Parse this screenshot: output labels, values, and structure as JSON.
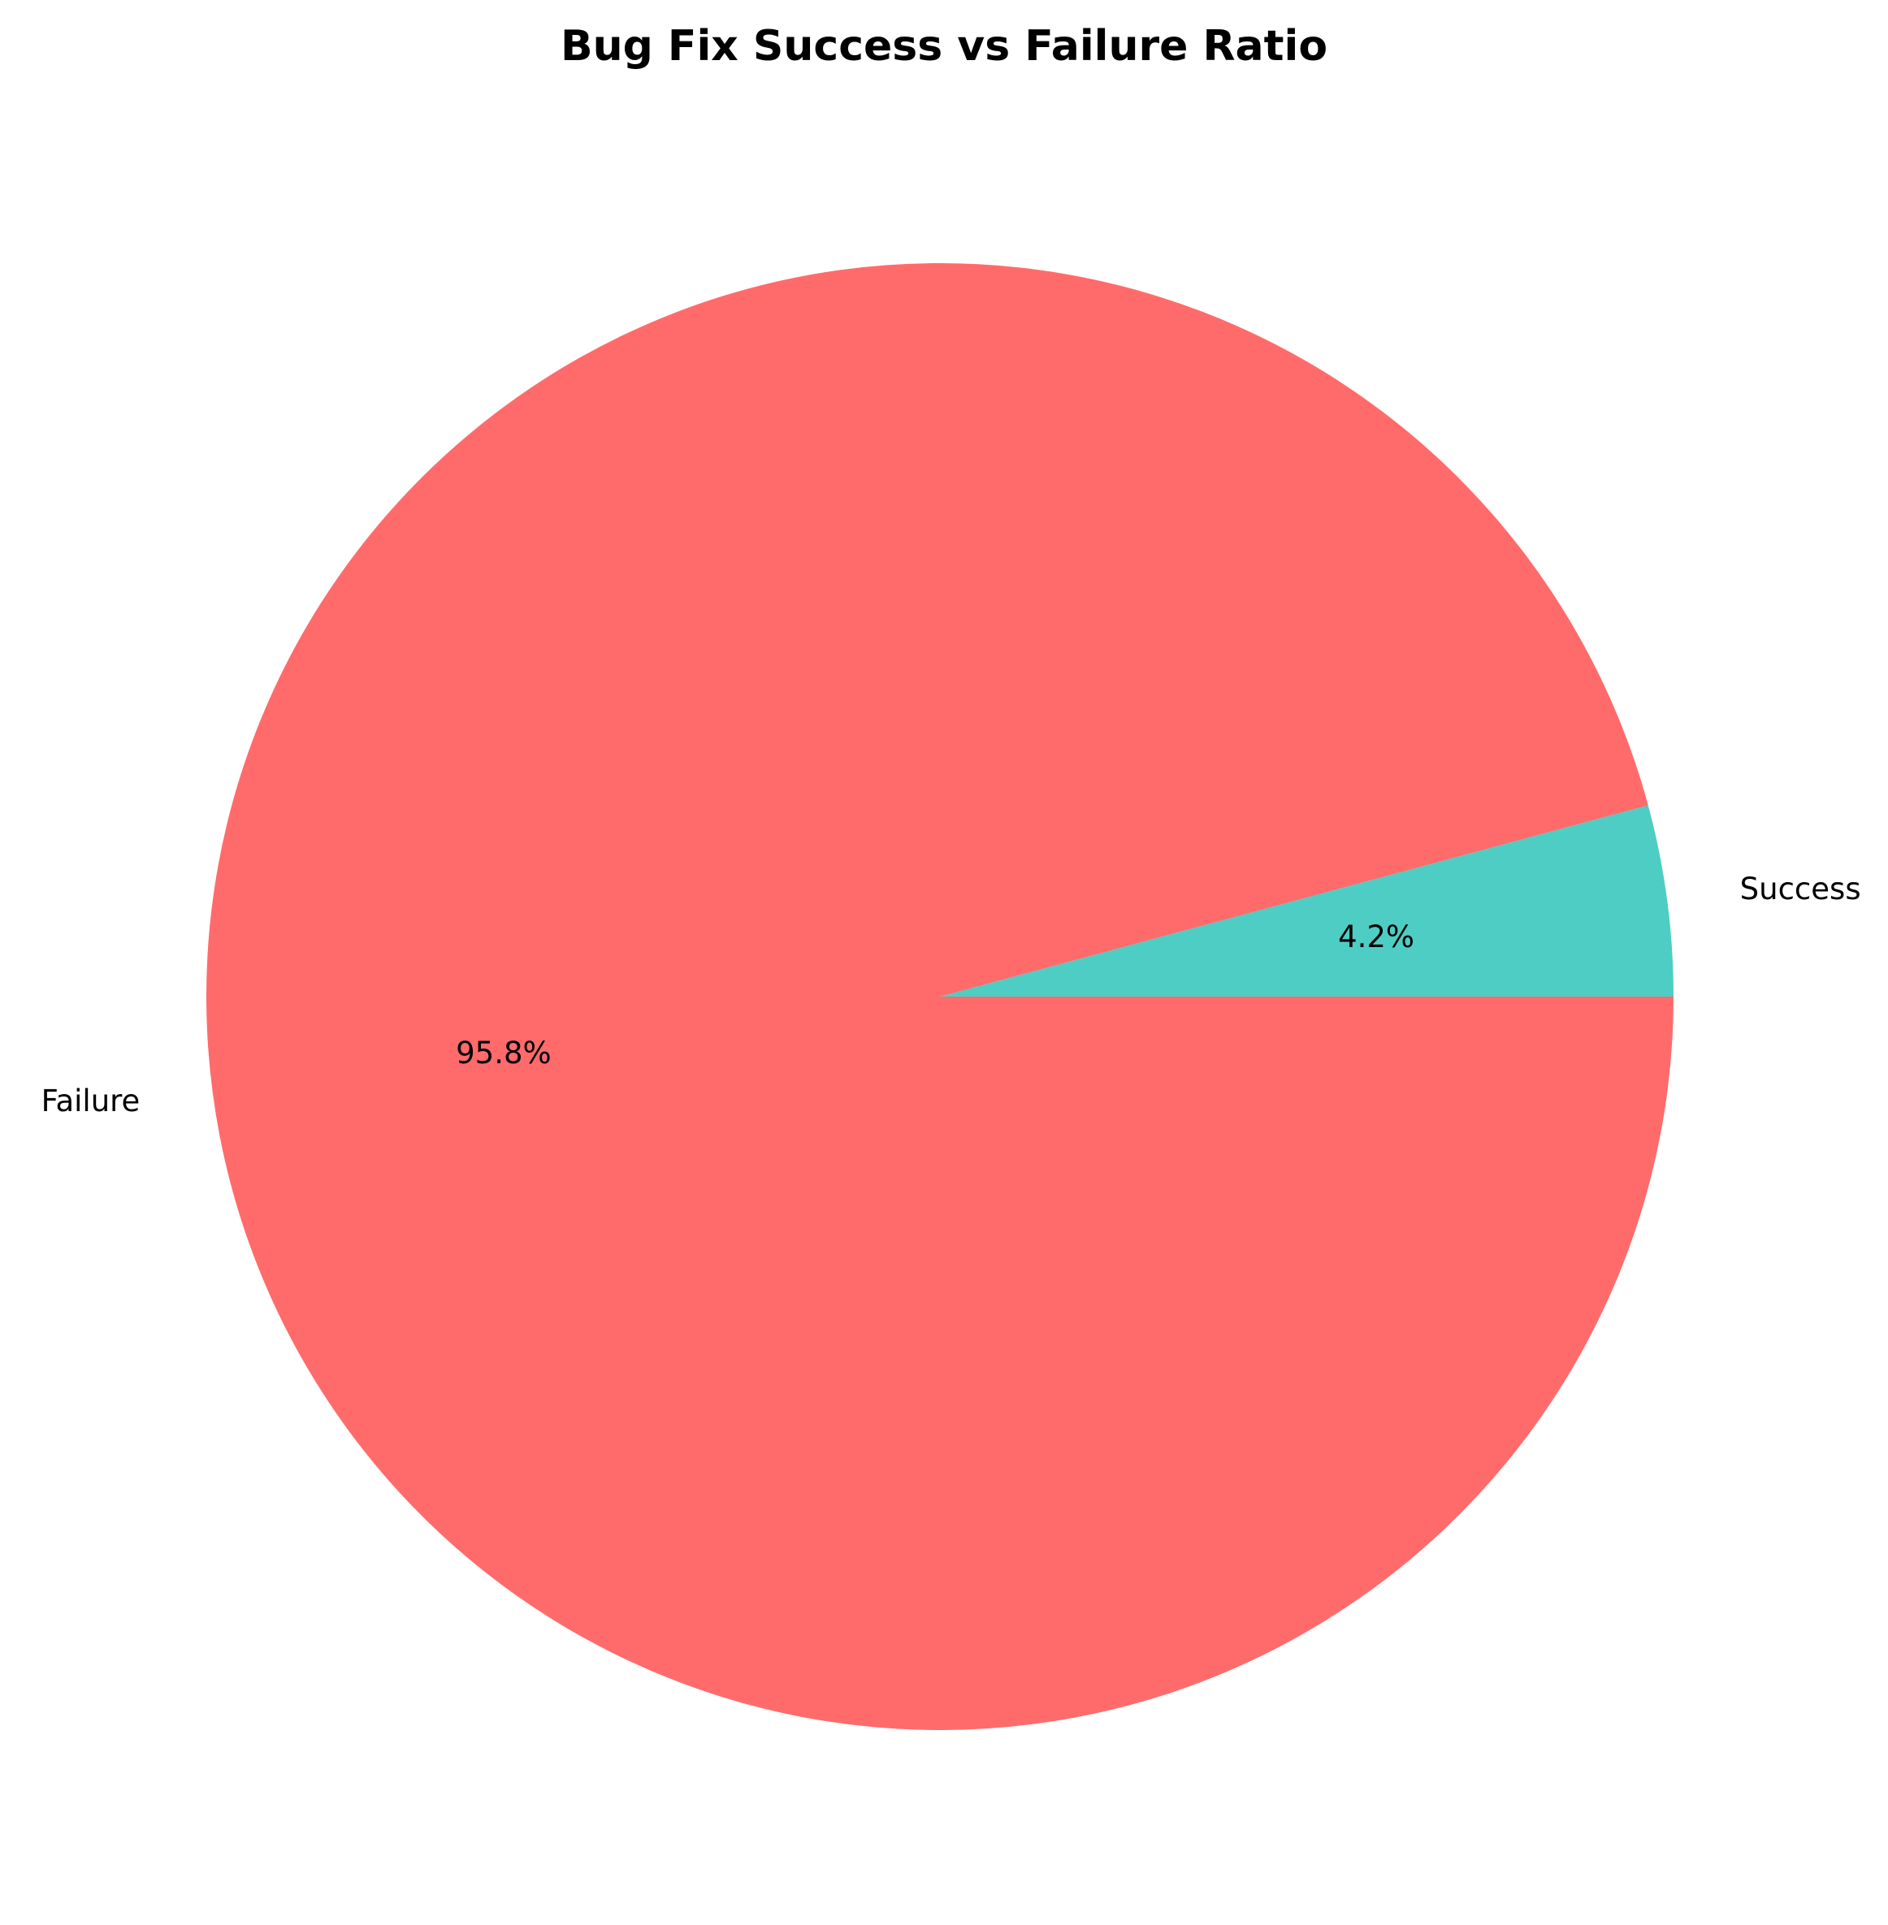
{
  "chart_data": {
    "type": "pie",
    "title": "Bug Fix Success vs Failure Ratio",
    "slices": [
      {
        "label": "Success",
        "value": 4.2,
        "pct_label": "4.2%",
        "color": "#4ECDC4"
      },
      {
        "label": "Failure",
        "value": 95.8,
        "pct_label": "95.8%",
        "color": "#FF6B6B"
      }
    ],
    "start_angle_deg": 0,
    "direction": "counterclockwise",
    "legend": "none"
  }
}
